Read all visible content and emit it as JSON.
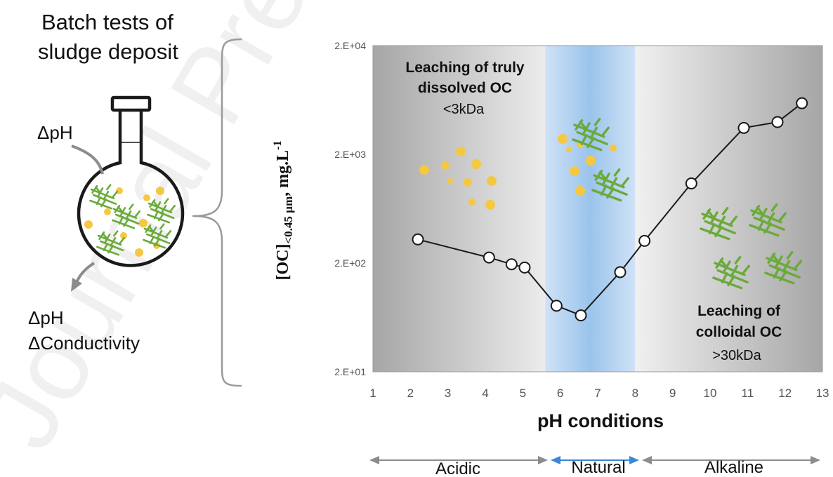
{
  "left_panel": {
    "title_line1": "Batch tests of",
    "title_line2": "sludge deposit",
    "input_label": "ΔpH",
    "output_label1": "ΔpH",
    "output_label2": "ΔConductivity"
  },
  "watermark": "Journal Pre-proof",
  "colors": {
    "flask_outline": "#1a1a1a",
    "particle": "#f5c842",
    "fiber": "#6aaa3a",
    "natural_band": "#9bc4ec",
    "arrow_gray": "#8c8c8c",
    "arrow_blue": "#3b86d6",
    "series_line": "#1a1a1a",
    "marker_fill": "#ffffff"
  },
  "annotations": {
    "acid_title_line1": "Leaching of truly",
    "acid_title_line2": "dissolved OC",
    "acid_size": "<3kDa",
    "alk_title_line1": "Leaching of",
    "alk_title_line2": "colloidal OC",
    "alk_size": ">30kDa"
  },
  "ph_ranges": {
    "acidic": "Acidic",
    "natural": "Natural",
    "alkaline": "Alkaline"
  },
  "chart_data": {
    "type": "line",
    "title": "",
    "xlabel": "pH conditions",
    "ylabel_main": "[OC]",
    "ylabel_sub": "<0.45 µm",
    "ylabel_unit": ", mg.L",
    "ylabel_sup": "-1",
    "xlim": [
      1,
      13
    ],
    "ylim": [
      20,
      20000
    ],
    "yscale": "log",
    "xticks": [
      1,
      2,
      3,
      4,
      5,
      6,
      7,
      8,
      9,
      10,
      11,
      12,
      13
    ],
    "yticks": [
      {
        "value": 20,
        "label": "2.E+01"
      },
      {
        "value": 200,
        "label": "2.E+02"
      },
      {
        "value": 2000,
        "label": "2.E+03"
      },
      {
        "value": 20000,
        "label": "2.E+04"
      }
    ],
    "grid": false,
    "bands": [
      {
        "name": "Acidic",
        "from": 1,
        "to": 5.6
      },
      {
        "name": "Natural",
        "from": 5.6,
        "to": 8
      },
      {
        "name": "Alkaline",
        "from": 8,
        "to": 13
      }
    ],
    "series": [
      {
        "points": [
          {
            "x": 2.2,
            "y": 330
          },
          {
            "x": 4.1,
            "y": 225
          },
          {
            "x": 4.7,
            "y": 195
          },
          {
            "x": 5.05,
            "y": 182
          },
          {
            "x": 5.9,
            "y": 81
          },
          {
            "x": 6.55,
            "y": 66
          },
          {
            "x": 7.6,
            "y": 165
          },
          {
            "x": 8.25,
            "y": 320
          },
          {
            "x": 9.5,
            "y": 1080
          },
          {
            "x": 10.9,
            "y": 3500
          },
          {
            "x": 11.8,
            "y": 3960
          },
          {
            "x": 12.45,
            "y": 5900
          }
        ]
      }
    ]
  }
}
